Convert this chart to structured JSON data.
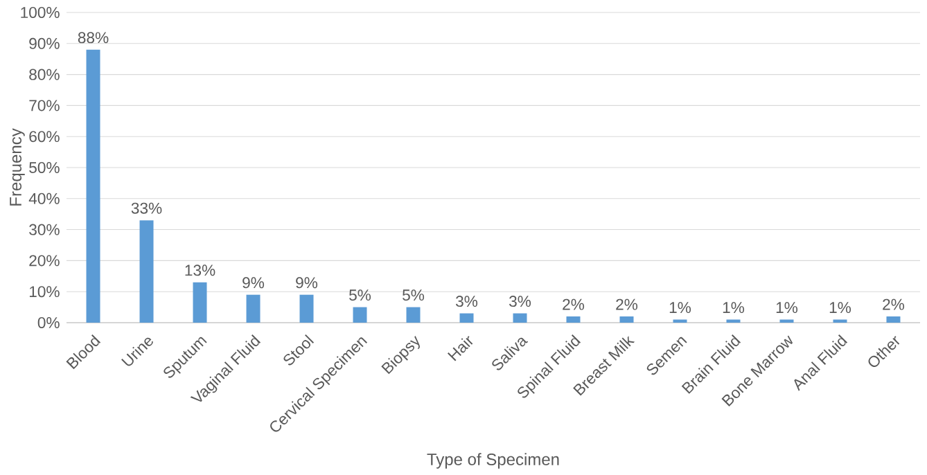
{
  "chart_data": {
    "type": "bar",
    "xlabel": "Type of Specimen",
    "ylabel": "Frequency",
    "categories": [
      "Blood",
      "Urine",
      "Sputum",
      "Vaginal Fluid",
      "Stool",
      "Cervical Specimen",
      "Biopsy",
      "Hair",
      "Saliva",
      "Spinal Fluid",
      "Breast Milk",
      "Semen",
      "Brain Fluid",
      "Bone Marrow",
      "Anal Fluid",
      "Other"
    ],
    "values": [
      88,
      33,
      13,
      9,
      9,
      5,
      5,
      3,
      3,
      2,
      2,
      1,
      1,
      1,
      1,
      2
    ],
    "value_labels": [
      "88%",
      "33%",
      "13%",
      "9%",
      "9%",
      "5%",
      "5%",
      "3%",
      "3%",
      "2%",
      "2%",
      "1%",
      "1%",
      "1%",
      "1%",
      "2%"
    ],
    "color": "#5b9bd5",
    "ylim": [
      0,
      100
    ],
    "yticks": [
      {
        "value": 0,
        "label": "0%"
      },
      {
        "value": 10,
        "label": "10%"
      },
      {
        "value": 20,
        "label": "20%"
      },
      {
        "value": 30,
        "label": "30%"
      },
      {
        "value": 40,
        "label": "40%"
      },
      {
        "value": 50,
        "label": "50%"
      },
      {
        "value": 60,
        "label": "60%"
      },
      {
        "value": 70,
        "label": "70%"
      },
      {
        "value": 80,
        "label": "80%"
      },
      {
        "value": 90,
        "label": "90%"
      },
      {
        "value": 100,
        "label": "100%"
      }
    ],
    "grid": "y"
  }
}
